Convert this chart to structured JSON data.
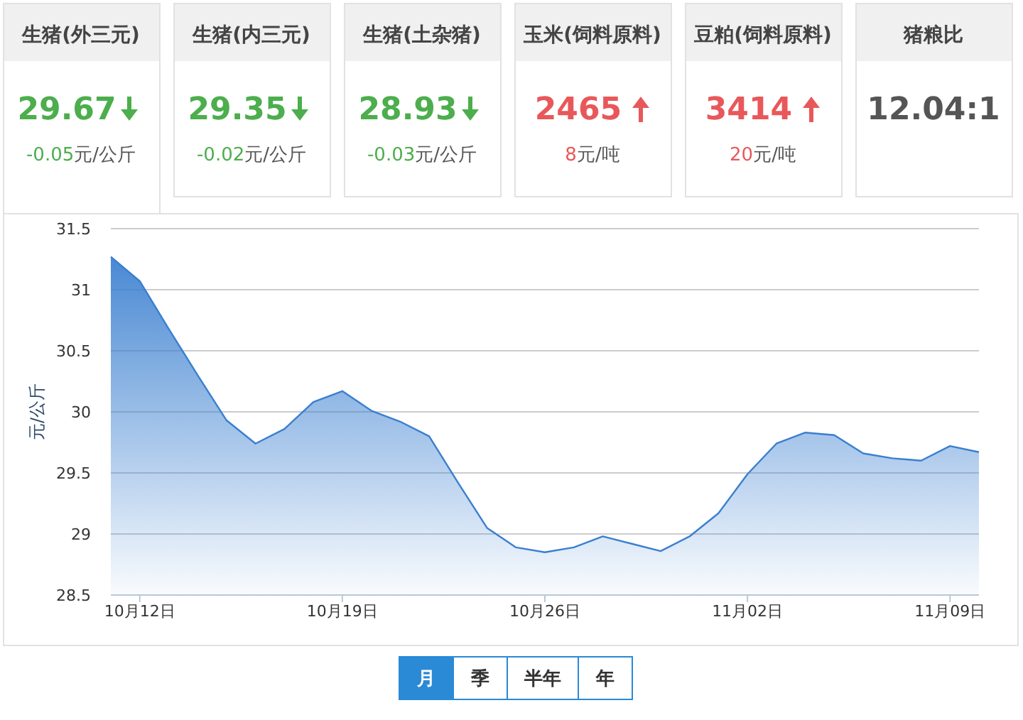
{
  "chart_data": [
    {
      "type": "other",
      "title": "生猪(外三元)",
      "annotations": [
        "29.67",
        "-0.05元/公斤"
      ]
    },
    {
      "type": "other",
      "title": "生猪(内三元)",
      "annotations": [
        "29.35",
        "-0.02元/公斤"
      ]
    },
    {
      "type": "other",
      "title": "生猪(土杂猪)",
      "annotations": [
        "28.93",
        "-0.03元/公斤"
      ]
    },
    {
      "type": "other",
      "title": "玉米(饲料原料)",
      "annotations": [
        "2465",
        "8元/吨"
      ]
    },
    {
      "type": "other",
      "title": "豆粕(饲料原料)",
      "annotations": [
        "3414",
        "20元/吨"
      ]
    },
    {
      "type": "other",
      "title": "猪粮比",
      "annotations": [
        "12.04:1"
      ]
    },
    {
      "type": "area",
      "ylabel": "元/公斤",
      "grid": "y",
      "x": [
        "--10-11",
        "--10-12",
        "--10-13",
        "--10-14",
        "--10-15",
        "--10-16",
        "--10-17",
        "--10-18",
        "--10-19",
        "--10-20",
        "--10-21",
        "--10-22",
        "--10-23",
        "--10-24",
        "--10-25",
        "--10-26",
        "--10-27",
        "--10-28",
        "--10-29",
        "--10-30",
        "--10-31",
        "--11-01",
        "--11-02",
        "--11-03",
        "--11-04",
        "--11-05",
        "--11-06",
        "--11-07",
        "--11-08",
        "--11-09",
        "--11-10"
      ],
      "series": [
        {
          "color": "#3a7fd0",
          "values": [
            31.27,
            31.07,
            30.68,
            30.3,
            29.93,
            29.74,
            29.86,
            30.08,
            30.17,
            30.01,
            29.92,
            29.8,
            29.42,
            29.05,
            28.89,
            28.85,
            28.89,
            28.98,
            28.92,
            28.86,
            28.98,
            29.17,
            29.49,
            29.74,
            29.83,
            29.81,
            29.66,
            29.62,
            29.6,
            29.72,
            29.67
          ]
        }
      ],
      "xlim": [
        "--10-11",
        "--11-10"
      ],
      "xticks": [
        {
          "value": "--10-12",
          "label": "10月12日"
        },
        {
          "value": "--10-19",
          "label": "10月19日"
        },
        {
          "value": "--10-26",
          "label": "10月26日"
        },
        {
          "value": "--11-02",
          "label": "11月02日"
        },
        {
          "value": "--11-09",
          "label": "11月09日"
        }
      ],
      "ylim": [
        28.5,
        31.5
      ],
      "yticks": [
        28.5,
        29,
        29.5,
        30,
        30.5,
        31,
        31.5
      ]
    },
    {
      "type": "other",
      "annotations": [
        "月",
        "季",
        "半年",
        "年"
      ]
    }
  ]
}
